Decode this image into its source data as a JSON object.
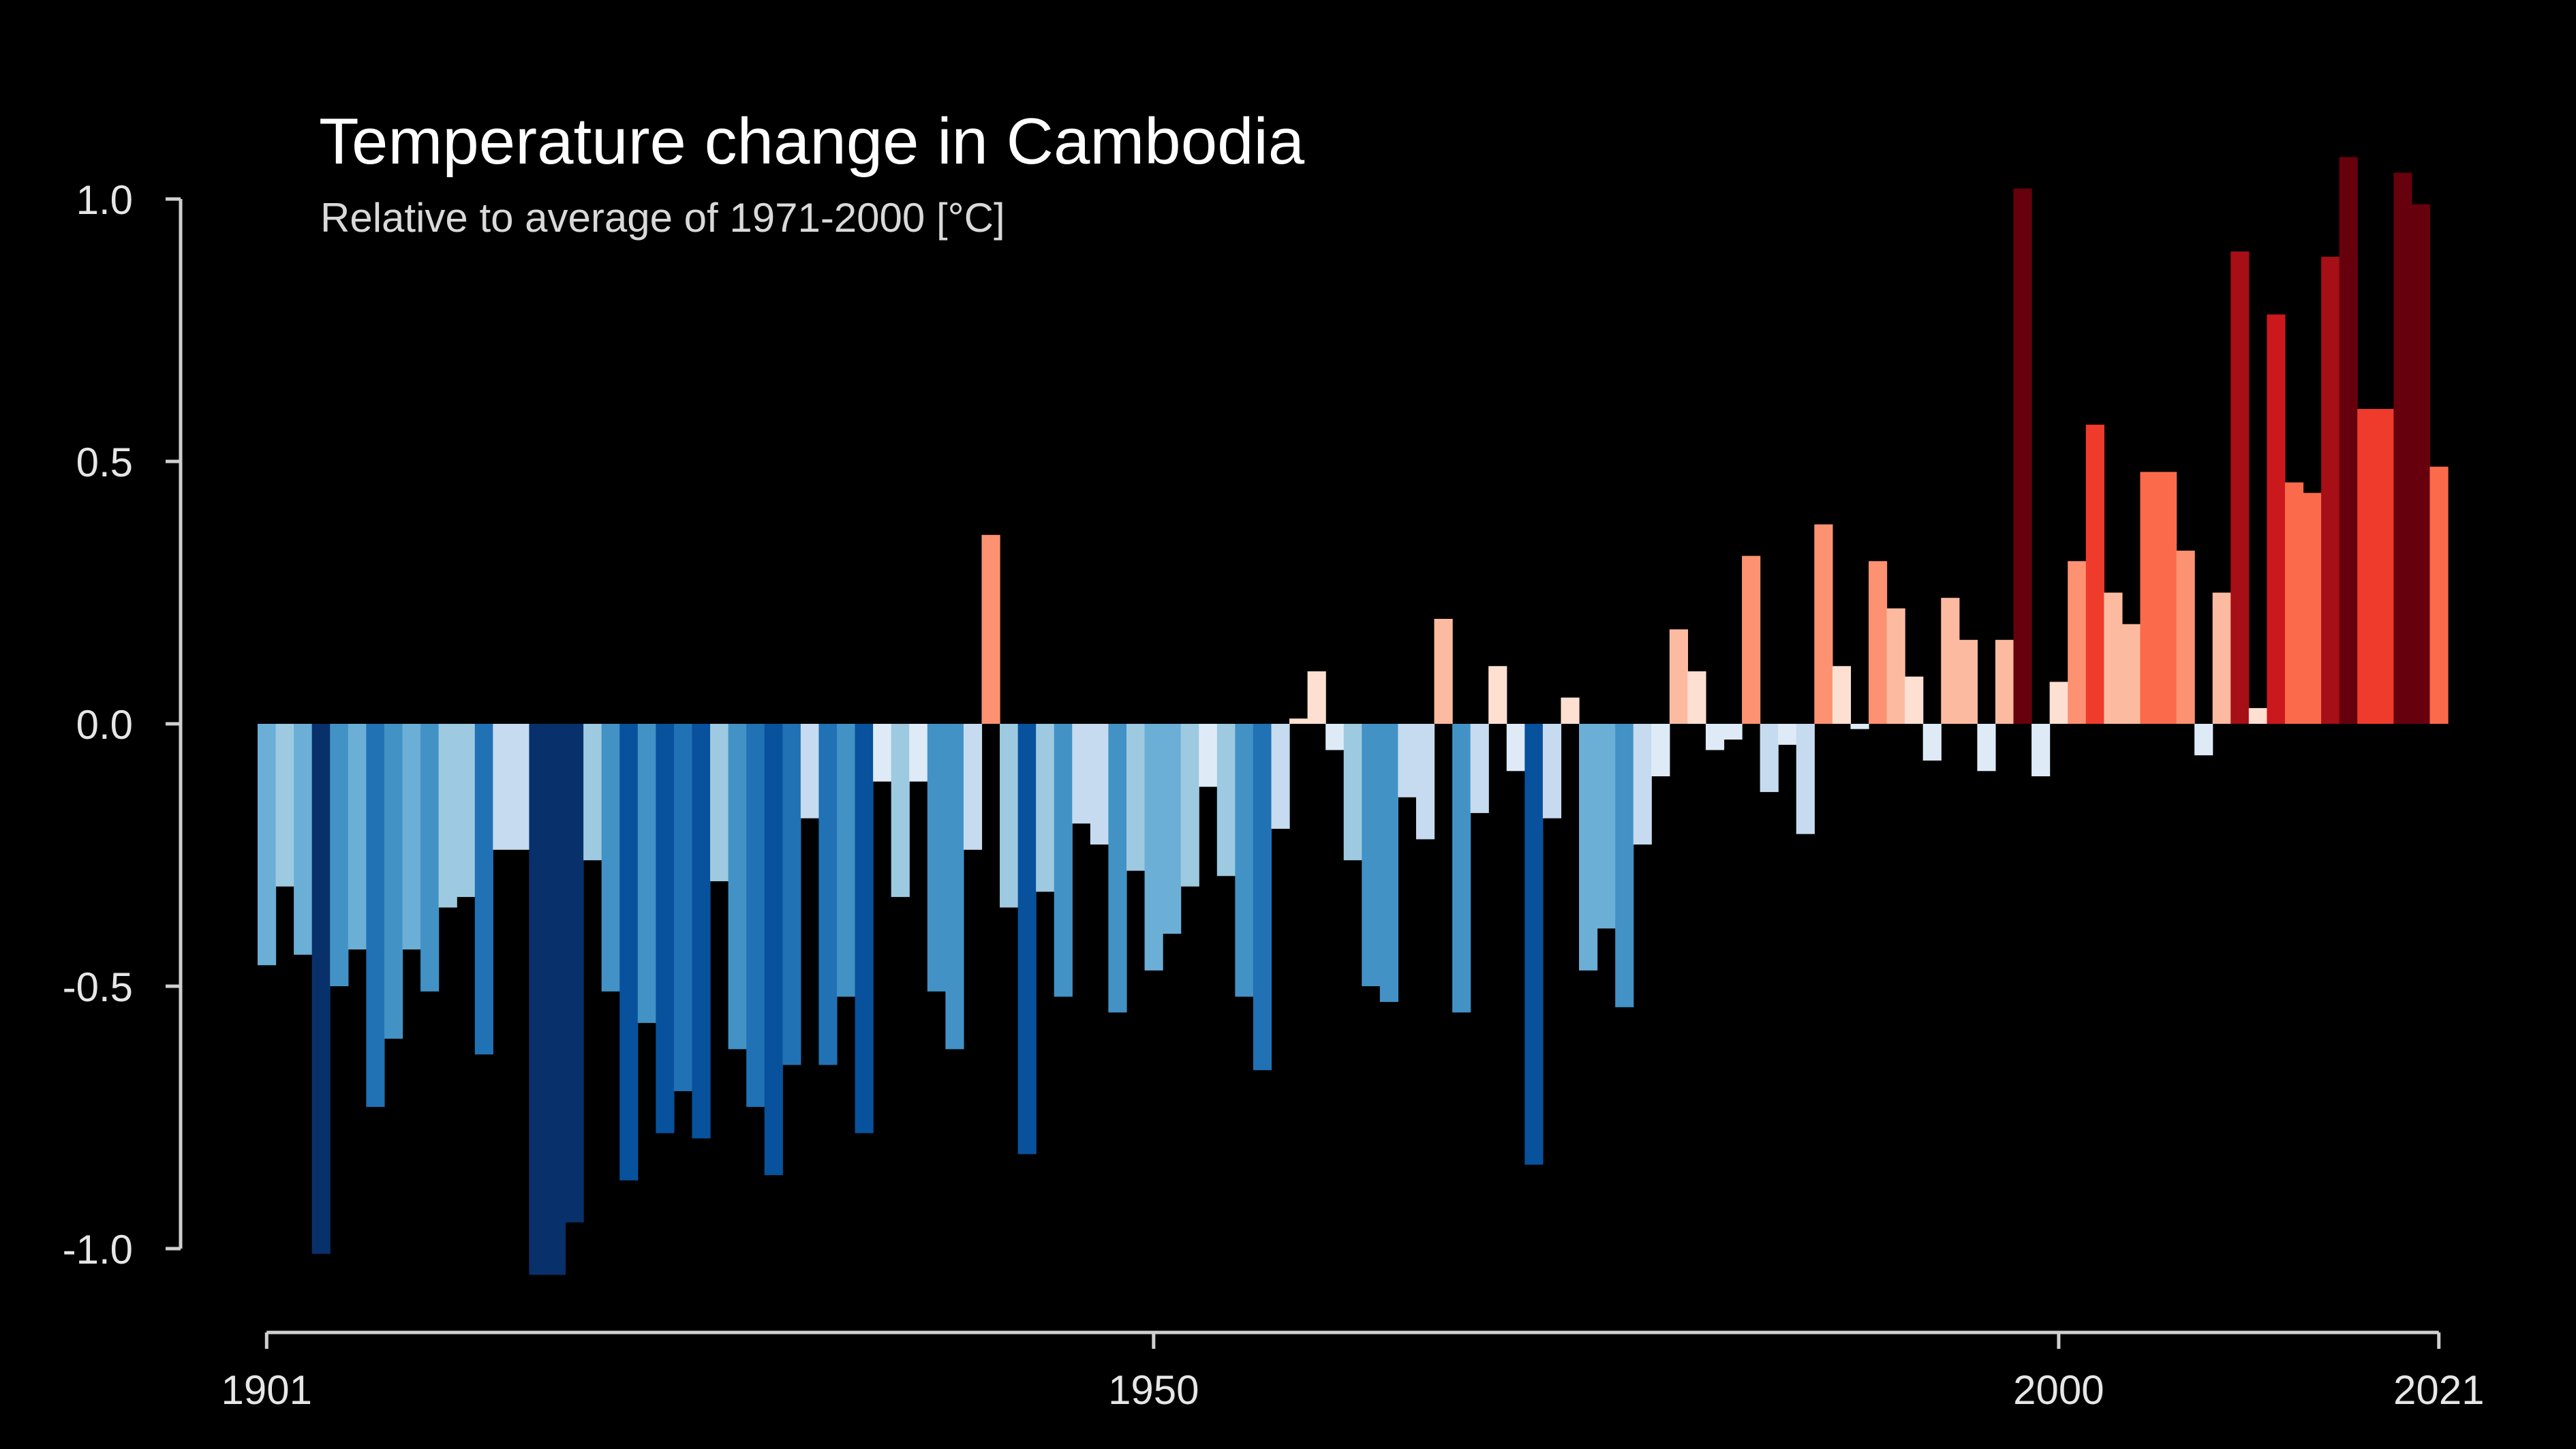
{
  "chart_data": {
    "type": "bar",
    "title": "Temperature change in Cambodia",
    "subtitle": "Relative to average of 1971-2000  [°C]",
    "xlabel": "",
    "ylabel": "",
    "x_start": 1901,
    "x_end": 2021,
    "x_ticks": [
      "1901",
      "1950",
      "2000",
      "2021"
    ],
    "y_ticks": [
      "1.0",
      "0.5",
      "0.0",
      "-0.5",
      "-1.0"
    ],
    "ylim": [
      -1.0,
      1.0
    ],
    "grid": false,
    "legend": "none",
    "color_scale": {
      "min": -1.0,
      "max": 1.1,
      "negative_colors": [
        "#08306b",
        "#08519c",
        "#2171b5",
        "#4292c6",
        "#6baed6",
        "#9ecae1",
        "#c6dbef",
        "#deebf7"
      ],
      "positive_colors": [
        "#fee0d2",
        "#fcbba1",
        "#fc9272",
        "#fb6a4a",
        "#ef3b2c",
        "#cb181d",
        "#a50f15",
        "#67000d"
      ]
    },
    "categories": [
      1901,
      1902,
      1903,
      1904,
      1905,
      1906,
      1907,
      1908,
      1909,
      1910,
      1911,
      1912,
      1913,
      1914,
      1915,
      1916,
      1917,
      1918,
      1919,
      1920,
      1921,
      1922,
      1923,
      1924,
      1925,
      1926,
      1927,
      1928,
      1929,
      1930,
      1931,
      1932,
      1933,
      1934,
      1935,
      1936,
      1937,
      1938,
      1939,
      1940,
      1941,
      1942,
      1943,
      1944,
      1945,
      1946,
      1947,
      1948,
      1949,
      1950,
      1951,
      1952,
      1953,
      1954,
      1955,
      1956,
      1957,
      1958,
      1959,
      1960,
      1961,
      1962,
      1963,
      1964,
      1965,
      1966,
      1967,
      1968,
      1969,
      1970,
      1971,
      1972,
      1973,
      1974,
      1975,
      1976,
      1977,
      1978,
      1979,
      1980,
      1981,
      1982,
      1983,
      1984,
      1985,
      1986,
      1987,
      1988,
      1989,
      1990,
      1991,
      1992,
      1993,
      1994,
      1995,
      1996,
      1997,
      1998,
      1999,
      2000,
      2001,
      2002,
      2003,
      2004,
      2005,
      2006,
      2007,
      2008,
      2009,
      2010,
      2011,
      2012,
      2013,
      2014,
      2015,
      2016,
      2017,
      2018,
      2019,
      2020,
      2021
    ],
    "values": [
      -0.46,
      -0.31,
      -0.44,
      -1.01,
      -0.5,
      -0.43,
      -0.73,
      -0.6,
      -0.43,
      -0.51,
      -0.35,
      -0.33,
      -0.63,
      -0.24,
      -0.24,
      -1.05,
      -1.05,
      -0.95,
      -0.26,
      -0.51,
      -0.87,
      -0.57,
      -0.78,
      -0.7,
      -0.79,
      -0.3,
      -0.62,
      -0.73,
      -0.86,
      -0.65,
      -0.18,
      -0.65,
      -0.52,
      -0.78,
      -0.11,
      -0.33,
      -0.11,
      -0.51,
      -0.62,
      -0.24,
      0.36,
      -0.35,
      -0.82,
      -0.32,
      -0.52,
      -0.19,
      -0.23,
      -0.55,
      -0.28,
      -0.47,
      -0.4,
      -0.31,
      -0.12,
      -0.29,
      -0.52,
      -0.66,
      -0.2,
      0.01,
      0.1,
      -0.05,
      -0.26,
      -0.5,
      -0.53,
      -0.14,
      -0.22,
      0.2,
      -0.55,
      -0.17,
      0.11,
      -0.09,
      -0.84,
      -0.18,
      0.05,
      -0.47,
      -0.39,
      -0.54,
      -0.23,
      -0.1,
      0.18,
      0.1,
      -0.05,
      -0.03,
      0.32,
      -0.13,
      -0.04,
      -0.21,
      0.38,
      0.11,
      -0.01,
      0.31,
      0.22,
      0.09,
      -0.07,
      0.24,
      0.16,
      -0.09,
      0.16,
      1.02,
      -0.1,
      0.08,
      0.31,
      0.57,
      0.25,
      0.19,
      0.48,
      0.48,
      0.33,
      -0.06,
      0.25,
      0.9,
      0.03,
      0.78,
      0.46,
      0.44,
      0.89,
      1.08,
      0.6,
      0.6,
      1.05,
      0.99,
      0.49
    ]
  }
}
